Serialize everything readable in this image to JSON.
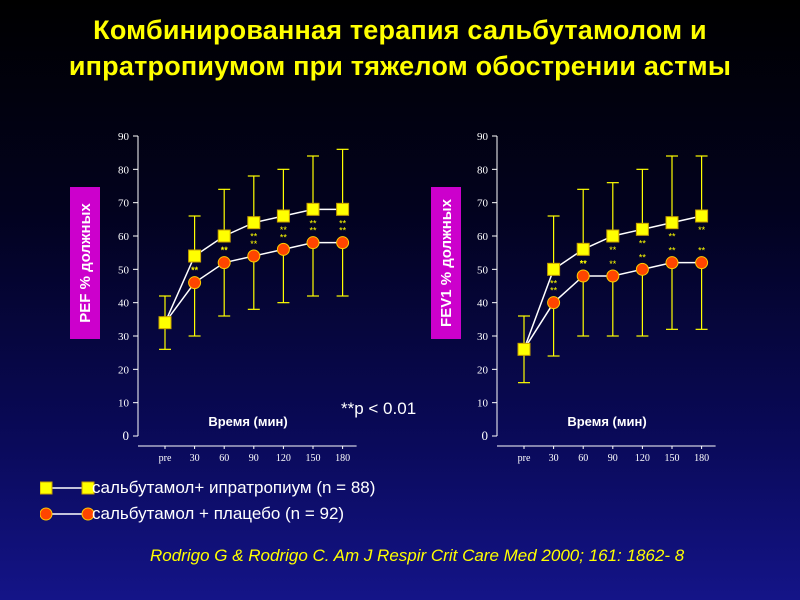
{
  "slide": {
    "title": "Комбинированная терапия сальбутамолом и ипратропиумом при тяжелом обострении астмы",
    "significance_note": "**p < 0.01",
    "citation": "Rodrigo G & Rodrigo C. Am J Respir Crit Care Med 2000; 161: 1862- 8"
  },
  "legend": [
    {
      "label": "сальбутамол+ ипратропиум (n = 88)",
      "marker": "square",
      "color": "#ffff00"
    },
    {
      "label": "сальбутамол + плацебо (n = 92)",
      "marker": "circle",
      "color": "#ff4500"
    }
  ],
  "colors": {
    "combo": "#ffff00",
    "placebo": "#ff4500",
    "ylabel_bg": "#cc00cc",
    "axis": "#ffffff"
  },
  "chart_data": [
    {
      "type": "line",
      "ylabel": "PEF % должных",
      "xlabel": "Время (мин)",
      "categories": [
        "pre",
        "30",
        "60",
        "90",
        "120",
        "150",
        "180"
      ],
      "yticks": [
        "0",
        "10",
        "20",
        "30",
        "40",
        "50",
        "60",
        "70",
        "80",
        "90"
      ],
      "ylim": [
        0,
        90
      ],
      "series": [
        {
          "name": "сальбутамол+ ипратропиум (n = 88)",
          "values": [
            34,
            54,
            60,
            64,
            66,
            68,
            68
          ],
          "error_upper": [
            42,
            66,
            74,
            78,
            80,
            84,
            86
          ]
        },
        {
          "name": "сальбутамол + плацебо (n = 92)",
          "values": [
            34,
            46,
            52,
            54,
            56,
            58,
            58
          ],
          "error_lower": [
            26,
            30,
            36,
            38,
            40,
            42,
            42
          ]
        }
      ],
      "significance_labels": [
        "",
        "**",
        "**",
        "**",
        "**",
        "**",
        "**"
      ]
    },
    {
      "type": "line",
      "ylabel": "FEV1 % должных",
      "xlabel": "Время (мин)",
      "categories": [
        "pre",
        "30",
        "60",
        "90",
        "120",
        "150",
        "180"
      ],
      "yticks": [
        "0",
        "10",
        "20",
        "30",
        "40",
        "50",
        "60",
        "70",
        "80",
        "90"
      ],
      "ylim": [
        0,
        90
      ],
      "series": [
        {
          "name": "сальбутамол+ ипратропиум (n = 88)",
          "values": [
            26,
            50,
            56,
            60,
            62,
            64,
            66
          ],
          "error_upper": [
            36,
            66,
            74,
            76,
            80,
            84,
            84
          ]
        },
        {
          "name": "сальбутамол + плацебо (n = 92)",
          "values": [
            26,
            40,
            48,
            48,
            50,
            52,
            52
          ],
          "error_lower": [
            16,
            24,
            30,
            30,
            30,
            32,
            32
          ]
        }
      ],
      "significance_labels": [
        "",
        "**",
        "**",
        "**",
        "**",
        "**",
        "**"
      ]
    }
  ]
}
